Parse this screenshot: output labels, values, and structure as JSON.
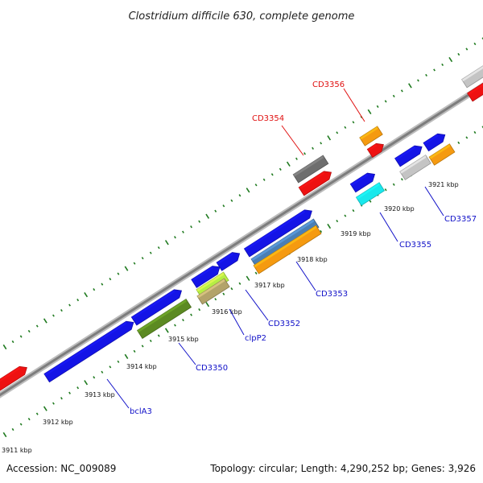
{
  "title": "Clostridium difficile 630, complete genome",
  "footer": {
    "accession": "Accession: NC_009089",
    "summary": "Topology: circular; Length: 4,290,252 bp; Genes: 3,926"
  },
  "colors": {
    "backbone": "#8c8c8c",
    "dots": "#1f7a1f",
    "label_blue": "#1010c8",
    "label_red": "#e01010",
    "feature_blue": "#1414e6",
    "feature_red": "#ee1111",
    "feature_orange": "#f59a10",
    "feature_gray": "#c4c4c4",
    "feature_darkgray": "#6e6e6e",
    "feature_cyan": "#19e8ec",
    "feature_olive": "#5c8a22",
    "feature_steel": "#4a7fb5",
    "feature_lime": "#b6ee44",
    "feature_tan": "#b3a36a"
  },
  "tick_labels": [
    "3911 kbp",
    "3912 kbp",
    "3913 kbp",
    "3914 kbp",
    "3915 kbp",
    "3916 kbp",
    "3917 kbp",
    "3918 kbp",
    "3919 kbp",
    "3920 kbp",
    "3921 kbp"
  ],
  "gene_labels": {
    "bclA3": "bclA3",
    "cd3350": "CD3350",
    "clpP2": "clpP2",
    "cd3352": "CD3352",
    "cd3353": "CD3353",
    "cd3354": "CD3354",
    "cd3355": "CD3355",
    "cd3356": "CD3356",
    "cd3357": "CD3357"
  }
}
